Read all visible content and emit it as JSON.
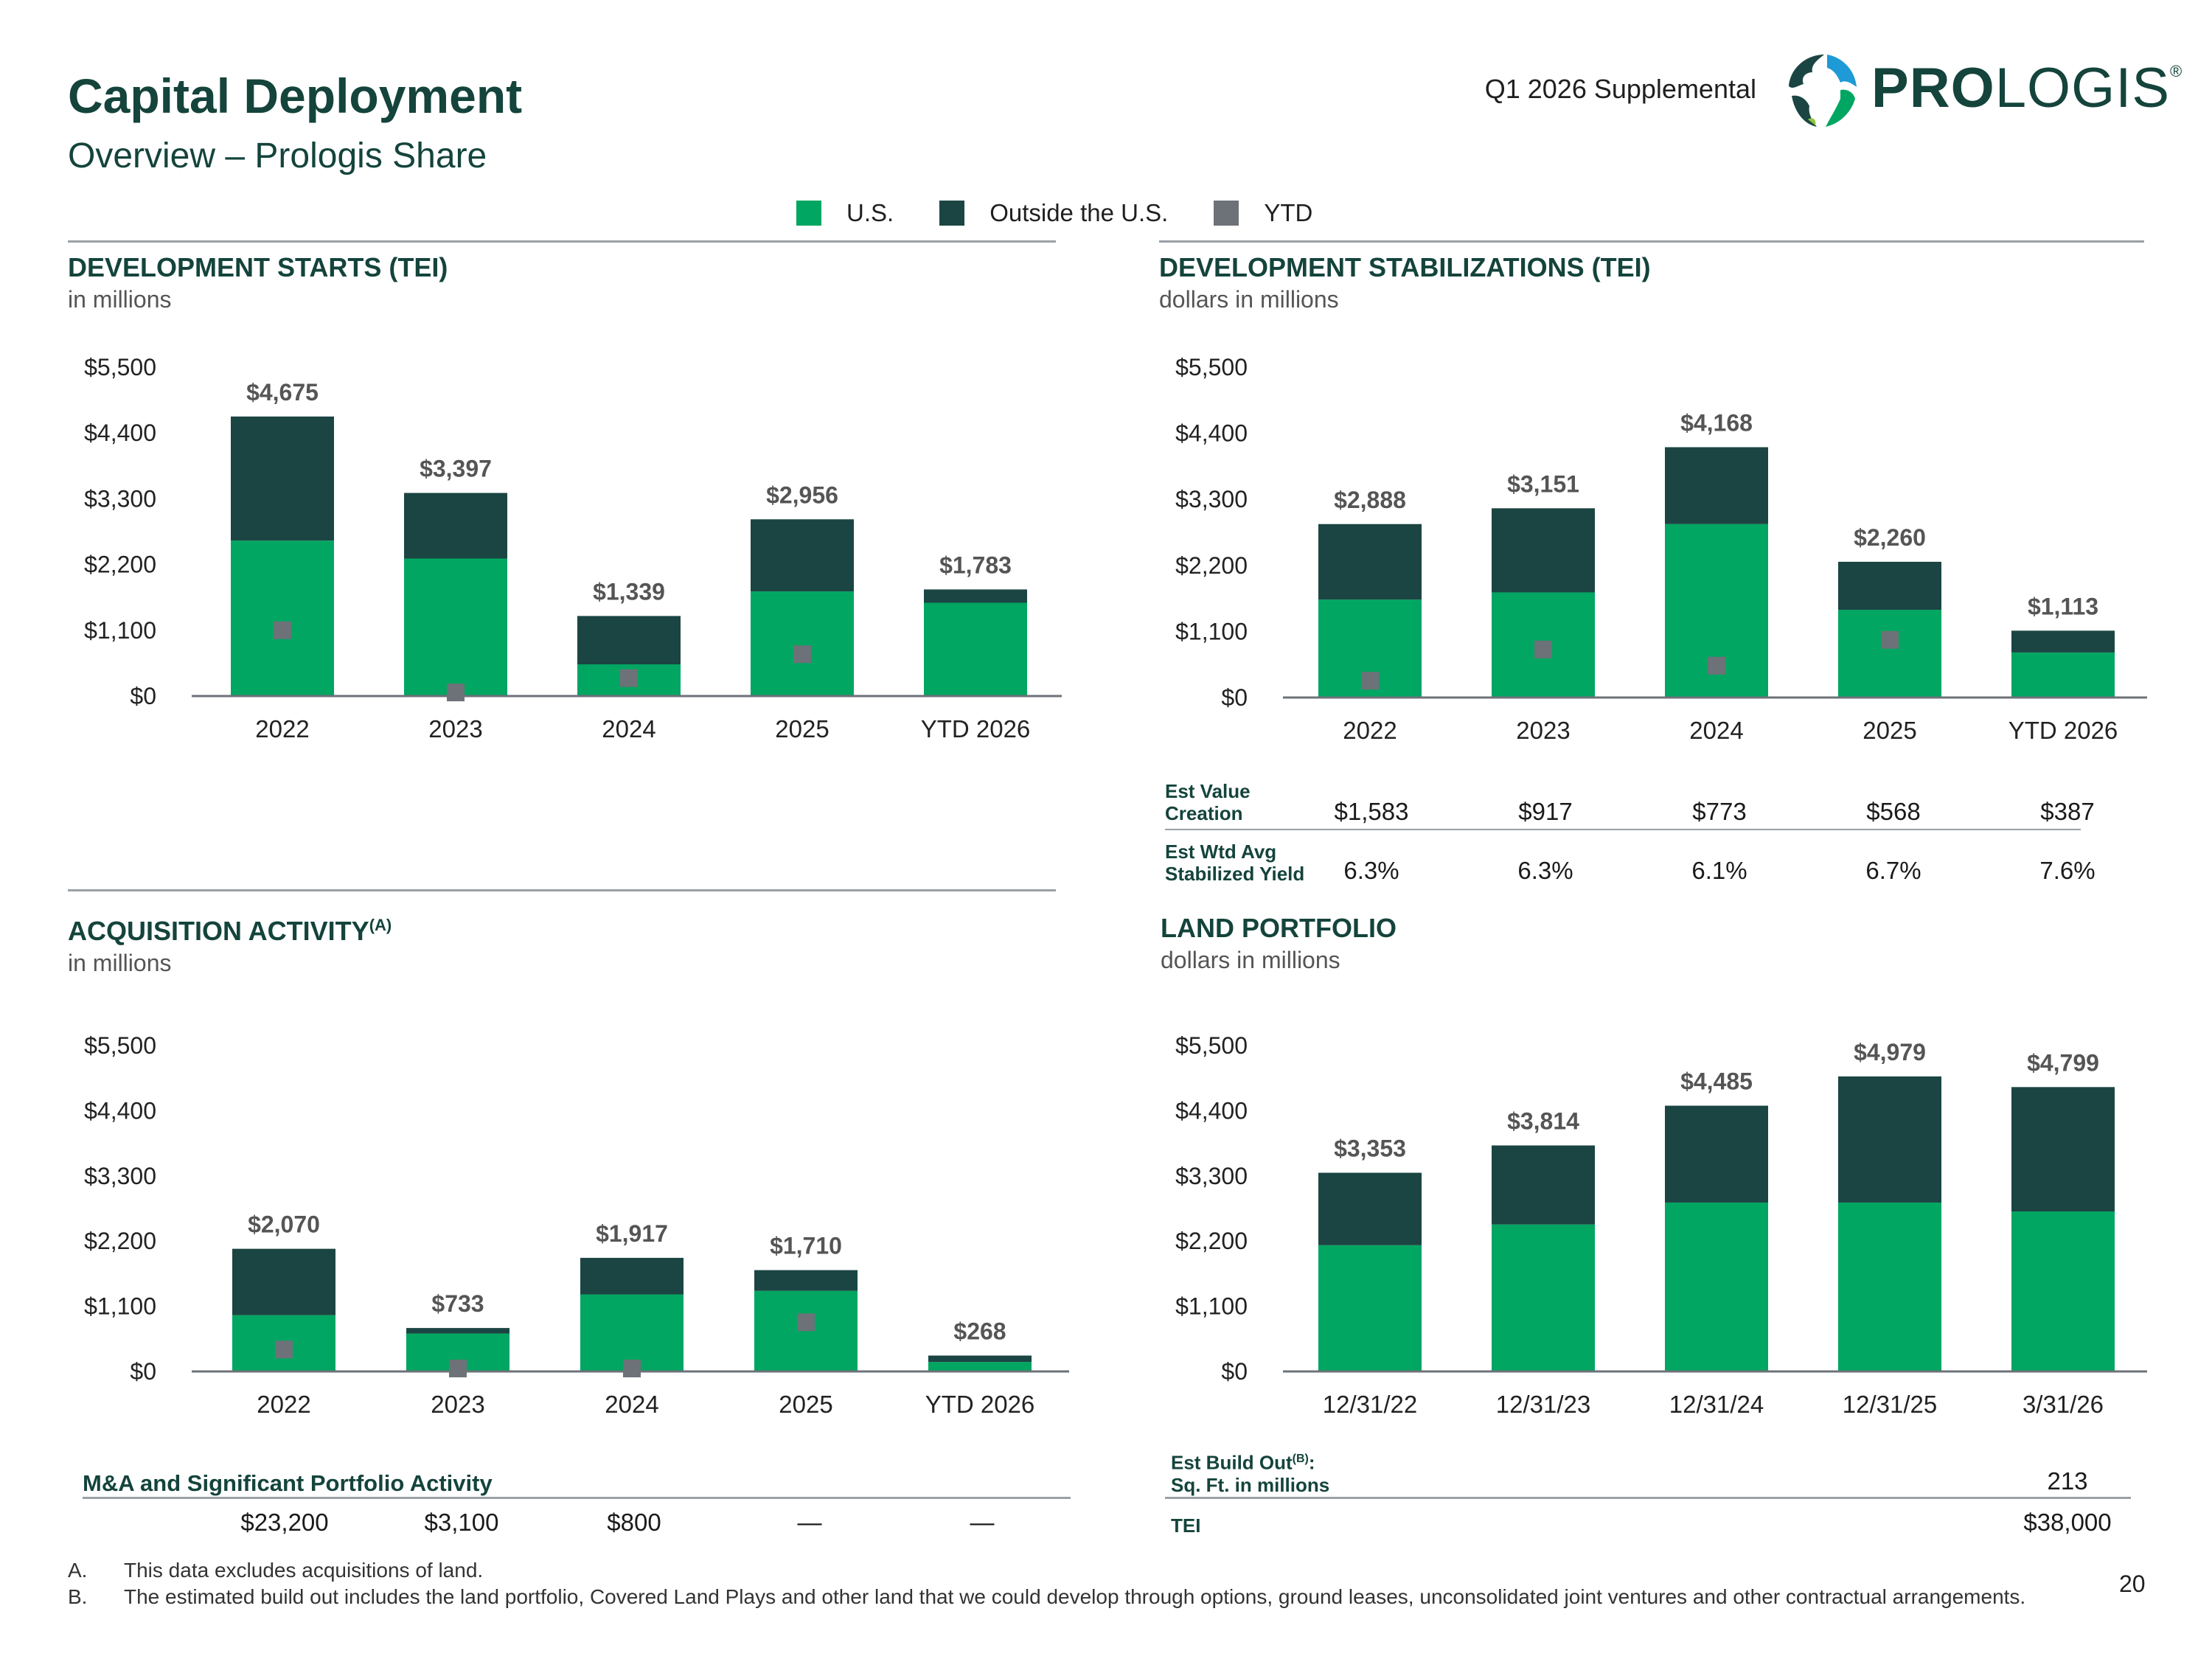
{
  "header": {
    "title": "Capital Deployment",
    "subtitle": "Overview – Prologis Share",
    "supplemental": "Q1 2026 Supplemental",
    "brand_bold": "PRO",
    "brand_light": "LOGIS",
    "brand_mark": "®"
  },
  "colors": {
    "us": "#00a661",
    "outside": "#1b4543",
    "ytd": "#6d7278",
    "axis": "#6d7278"
  },
  "legend": {
    "us": "U.S.",
    "outside": "Outside the U.S.",
    "ytd": "YTD"
  },
  "sections": {
    "dev_starts": {
      "title": "DEVELOPMENT STARTS (TEI)",
      "subtitle": "in millions"
    },
    "dev_stab": {
      "title": "DEVELOPMENT STABILIZATIONS (TEI)",
      "subtitle": "dollars in millions"
    },
    "acq": {
      "title": "ACQUISITION ACTIVITY",
      "title_sup": "(A)",
      "subtitle": "in millions"
    },
    "land": {
      "title": "LAND PORTFOLIO",
      "subtitle": "dollars in millions"
    }
  },
  "chart_data": [
    {
      "id": "dev_starts",
      "type": "bar",
      "stacked": true,
      "title": "DEVELOPMENT STARTS (TEI)",
      "categories": [
        "2022",
        "2023",
        "2024",
        "2025",
        "YTD 2026"
      ],
      "y_ticks": [
        "$5,500",
        "$4,400",
        "$3,300",
        "$2,200",
        "$1,100",
        "$0"
      ],
      "ylim": [
        0,
        5500
      ],
      "series": [
        {
          "name": "U.S.",
          "values": [
            2600,
            2300,
            530,
            1750,
            1560
          ]
        },
        {
          "name": "Outside the U.S.",
          "values": [
            2075,
            1097,
            809,
            1206,
            223
          ]
        }
      ],
      "ytd_markers": [
        1100,
        60,
        300,
        700,
        null
      ],
      "totals": [
        "$4,675",
        "$3,397",
        "$1,339",
        "$2,956",
        "$1,783"
      ]
    },
    {
      "id": "dev_stab",
      "type": "bar",
      "stacked": true,
      "title": "DEVELOPMENT STABILIZATIONS (TEI)",
      "categories": [
        "2022",
        "2023",
        "2024",
        "2025",
        "YTD 2026"
      ],
      "y_ticks": [
        "$5,500",
        "$4,400",
        "$3,300",
        "$2,200",
        "$1,100",
        "$0"
      ],
      "ylim": [
        0,
        5500
      ],
      "series": [
        {
          "name": "U.S.",
          "values": [
            1630,
            1750,
            2888,
            1460,
            750
          ]
        },
        {
          "name": "Outside the U.S.",
          "values": [
            1258,
            1401,
            1280,
            800,
            363
          ]
        }
      ],
      "ytd_markers": [
        280,
        800,
        530,
        960,
        null
      ],
      "totals": [
        "$2,888",
        "$3,151",
        "$4,168",
        "$2,260",
        "$1,113"
      ]
    },
    {
      "id": "acq",
      "type": "bar",
      "stacked": true,
      "title": "ACQUISITION ACTIVITY",
      "categories": [
        "2022",
        "2023",
        "2024",
        "2025",
        "YTD 2026"
      ],
      "y_ticks": [
        "$5,500",
        "$4,400",
        "$3,300",
        "$2,200",
        "$1,100",
        "$0"
      ],
      "ylim": [
        0,
        5500
      ],
      "series": [
        {
          "name": "U.S.",
          "values": [
            950,
            640,
            1300,
            1360,
            160
          ]
        },
        {
          "name": "Outside the U.S.",
          "values": [
            1120,
            93,
            617,
            350,
            108
          ]
        }
      ],
      "ytd_markers": [
        370,
        50,
        50,
        830,
        null
      ],
      "totals": [
        "$2,070",
        "$733",
        "$1,917",
        "$1,710",
        "$268"
      ]
    },
    {
      "id": "land",
      "type": "bar",
      "stacked": true,
      "title": "LAND PORTFOLIO",
      "categories": [
        "12/31/22",
        "12/31/23",
        "12/31/24",
        "12/31/25",
        "3/31/26"
      ],
      "y_ticks": [
        "$5,500",
        "$4,400",
        "$3,300",
        "$2,200",
        "$1,100",
        "$0"
      ],
      "ylim": [
        0,
        5500
      ],
      "series": [
        {
          "name": "U.S.",
          "values": [
            2130,
            2480,
            2850,
            2850,
            2700
          ]
        },
        {
          "name": "Outside the U.S.",
          "values": [
            1223,
            1334,
            1635,
            2129,
            2099
          ]
        }
      ],
      "ytd_markers": [
        null,
        null,
        null,
        null,
        null
      ],
      "totals": [
        "$3,353",
        "$3,814",
        "$4,485",
        "$4,979",
        "$4,799"
      ]
    }
  ],
  "stab_table": {
    "rows": [
      {
        "label_1": "Est Value",
        "label_2": "Creation",
        "values": [
          "$1,583",
          "$917",
          "$773",
          "$568",
          "$387"
        ]
      },
      {
        "label_1": "Est Wtd Avg",
        "label_2": "Stabilized Yield",
        "values": [
          "6.3%",
          "6.3%",
          "6.1%",
          "6.7%",
          "7.6%"
        ]
      }
    ]
  },
  "mna": {
    "label": "M&A and Significant Portfolio Activity",
    "values": [
      "$23,200",
      "$3,100",
      "$800",
      "—",
      "—"
    ]
  },
  "land_table": {
    "build_label_1": "Est Build Out",
    "build_sup": "(B)",
    "build_label_1_suffix": ":",
    "build_label_2": "Sq. Ft. in millions",
    "build_value": "213",
    "tei_label": "TEI",
    "tei_value": "$38,000"
  },
  "footnotes": [
    {
      "marker": "A.",
      "text": "This data excludes acquisitions of land."
    },
    {
      "marker": "B.",
      "text": "The estimated build out includes the land portfolio, Covered Land Plays and other land that we could develop through options, ground leases, unconsolidated joint ventures and other contractual arrangements."
    }
  ],
  "page_number": "20"
}
